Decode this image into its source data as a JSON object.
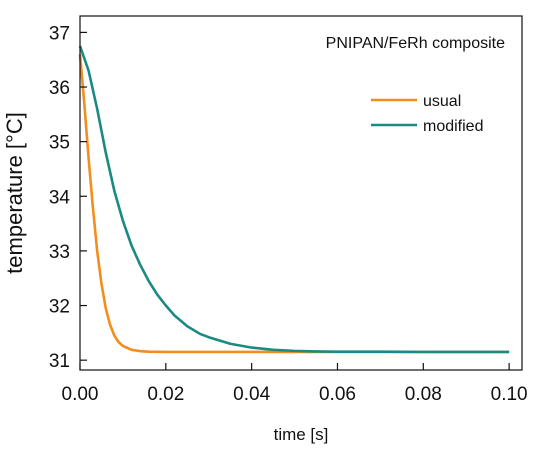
{
  "chart_data": {
    "type": "line",
    "title": "",
    "annotation": "PNIPAN/FeRh composite",
    "xlabel": "time [s]",
    "ylabel": "temperature [°C]",
    "xlim": [
      0.0,
      0.103
    ],
    "ylim": [
      30.82,
      37.3
    ],
    "x_ticks": [
      "0.00",
      "0.02",
      "0.04",
      "0.06",
      "0.08",
      "0.10"
    ],
    "x_tick_values": [
      0.0,
      0.02,
      0.04,
      0.06,
      0.08,
      0.1
    ],
    "y_ticks": [
      "31",
      "32",
      "33",
      "34",
      "35",
      "36",
      "37"
    ],
    "y_tick_values": [
      31,
      32,
      33,
      34,
      35,
      36,
      37
    ],
    "grid": false,
    "legend_position": "top-right",
    "series": [
      {
        "name": "usual",
        "color": "#f28e1c",
        "x": [
          0.0,
          0.001,
          0.002,
          0.003,
          0.004,
          0.005,
          0.006,
          0.007,
          0.008,
          0.009,
          0.01,
          0.012,
          0.014,
          0.016,
          0.02,
          0.025,
          0.03,
          0.04,
          0.05,
          0.06,
          0.07,
          0.08,
          0.09,
          0.1
        ],
        "y": [
          36.6,
          35.7,
          34.7,
          33.8,
          33.0,
          32.4,
          31.95,
          31.65,
          31.45,
          31.33,
          31.26,
          31.19,
          31.165,
          31.155,
          31.15,
          31.15,
          31.15,
          31.15,
          31.15,
          31.15,
          31.15,
          31.15,
          31.15,
          31.15
        ]
      },
      {
        "name": "modified",
        "color": "#1a8a82",
        "x": [
          0.0,
          0.002,
          0.004,
          0.006,
          0.008,
          0.01,
          0.012,
          0.014,
          0.016,
          0.018,
          0.02,
          0.022,
          0.025,
          0.028,
          0.03,
          0.035,
          0.04,
          0.045,
          0.05,
          0.055,
          0.06,
          0.07,
          0.08,
          0.09,
          0.1
        ],
        "y": [
          36.75,
          36.3,
          35.6,
          34.8,
          34.1,
          33.55,
          33.1,
          32.75,
          32.45,
          32.2,
          32.0,
          31.82,
          31.62,
          31.48,
          31.42,
          31.3,
          31.23,
          31.19,
          31.17,
          31.16,
          31.155,
          31.155,
          31.15,
          31.15,
          31.15
        ]
      }
    ]
  }
}
